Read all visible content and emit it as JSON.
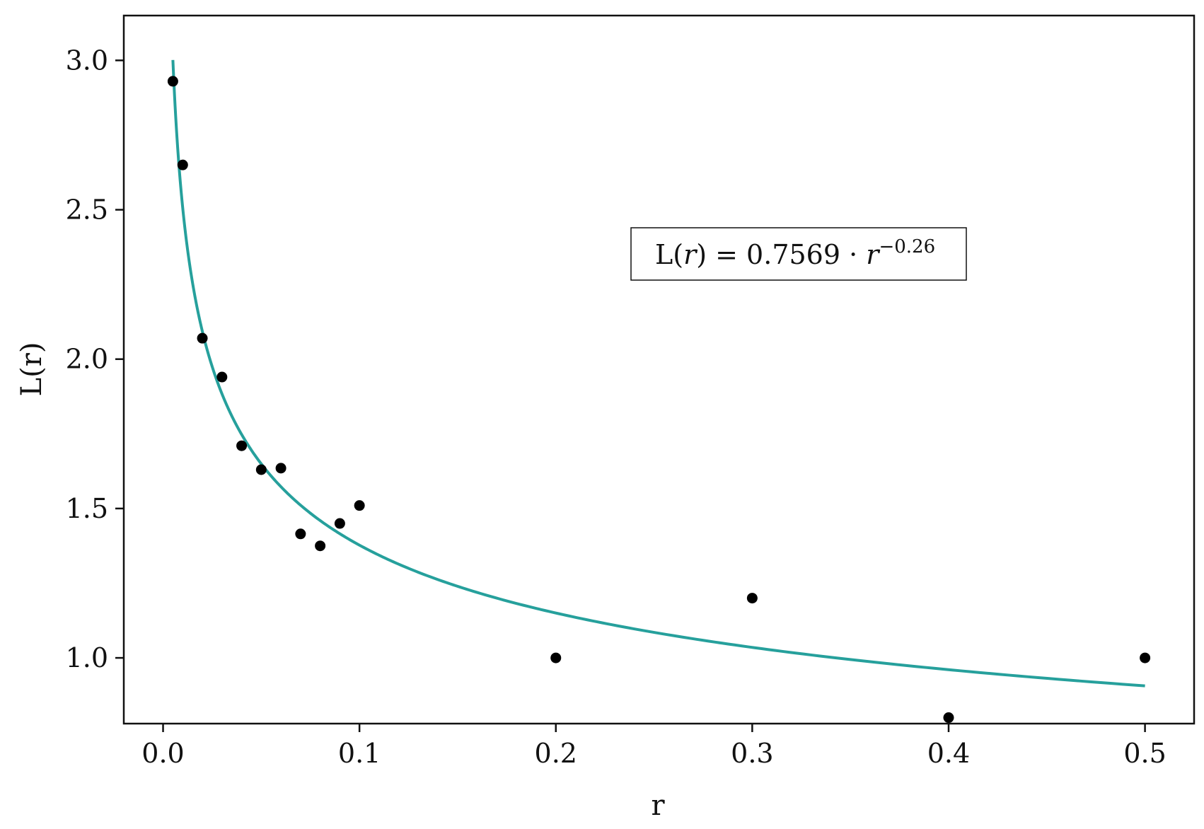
{
  "chart_data": {
    "type": "scatter",
    "xlabel": "r",
    "ylabel": "L(r)",
    "xlim": [
      -0.02,
      0.525
    ],
    "ylim": [
      0.78,
      3.15
    ],
    "x_ticks": [
      0.0,
      0.1,
      0.2,
      0.3,
      0.4,
      0.5
    ],
    "x_tick_labels": [
      "0.0",
      "0.1",
      "0.2",
      "0.3",
      "0.4",
      "0.5"
    ],
    "y_ticks": [
      1.0,
      1.5,
      2.0,
      2.5,
      3.0
    ],
    "y_tick_labels": [
      "1.0",
      "1.5",
      "2.0",
      "2.5",
      "3.0"
    ],
    "grid": false,
    "series": [
      {
        "kind": "points",
        "color": "#000000",
        "points": [
          {
            "x": 0.005,
            "y": 2.93
          },
          {
            "x": 0.01,
            "y": 2.65
          },
          {
            "x": 0.02,
            "y": 2.07
          },
          {
            "x": 0.03,
            "y": 1.94
          },
          {
            "x": 0.04,
            "y": 1.71
          },
          {
            "x": 0.05,
            "y": 1.63
          },
          {
            "x": 0.06,
            "y": 1.635
          },
          {
            "x": 0.07,
            "y": 1.415
          },
          {
            "x": 0.08,
            "y": 1.375
          },
          {
            "x": 0.09,
            "y": 1.45
          },
          {
            "x": 0.1,
            "y": 1.51
          },
          {
            "x": 0.2,
            "y": 1.0
          },
          {
            "x": 0.3,
            "y": 1.2
          },
          {
            "x": 0.4,
            "y": 0.8
          },
          {
            "x": 0.5,
            "y": 1.0
          }
        ]
      },
      {
        "kind": "fit",
        "color": "#26a09c",
        "coefficient": 0.7569,
        "exponent": -0.26,
        "x_range": [
          0.005,
          0.5
        ]
      }
    ],
    "annotation": {
      "prefix": "L(",
      "var": "r",
      "middle": ") = 0.7569 · ",
      "base": "r",
      "exponent": "−0.26"
    }
  }
}
